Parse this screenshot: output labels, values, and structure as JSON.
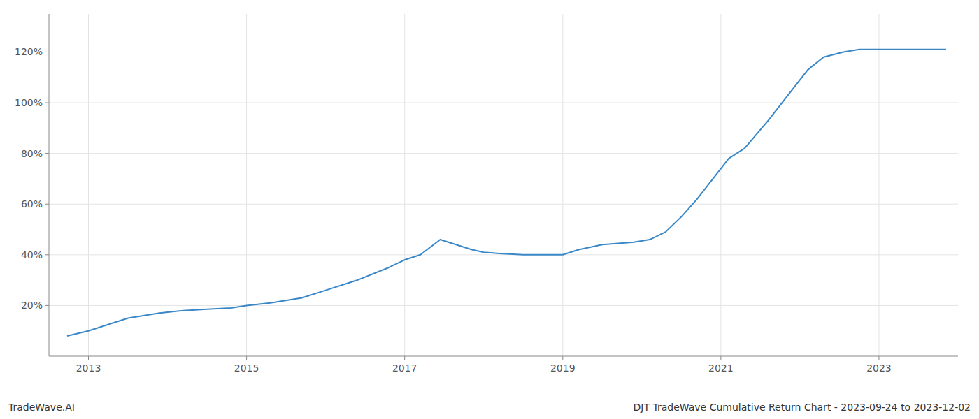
{
  "chart_data": {
    "type": "line",
    "title": "DJT TradeWave Cumulative Return Chart - 2023-09-24 to 2023-12-02",
    "annotations": [
      "TradeWave.AI"
    ],
    "x": [
      2012.73,
      2013.0,
      2013.5,
      2013.9,
      2014.2,
      2014.5,
      2014.8,
      2015.0,
      2015.3,
      2015.7,
      2016.0,
      2016.4,
      2016.8,
      2017.0,
      2017.2,
      2017.45,
      2017.65,
      2017.85,
      2018.0,
      2018.2,
      2018.5,
      2018.8,
      2019.0,
      2019.2,
      2019.5,
      2019.7,
      2019.9,
      2020.1,
      2020.3,
      2020.5,
      2020.7,
      2020.9,
      2021.1,
      2021.3,
      2021.6,
      2021.9,
      2022.1,
      2022.3,
      2022.55,
      2022.75,
      2023.0,
      2023.5,
      2023.85
    ],
    "values": [
      8,
      10,
      15,
      17,
      18,
      18.5,
      19,
      20,
      21,
      23,
      26,
      30,
      35,
      38,
      40,
      46,
      44,
      42,
      41,
      40.5,
      40,
      40,
      40,
      42,
      44,
      44.5,
      45,
      46,
      49,
      55,
      62,
      70,
      78,
      82,
      93,
      105,
      113,
      118,
      120,
      121,
      121,
      121,
      121
    ],
    "color": "#3a87c8",
    "xlim": [
      2012.5,
      2024.0
    ],
    "xticks": [
      2013,
      2015,
      2017,
      2019,
      2021,
      2023
    ],
    "ylim": [
      0,
      135
    ],
    "yticks": [
      {
        "value": 20,
        "label": "20%"
      },
      {
        "value": 40,
        "label": "40%"
      },
      {
        "value": 60,
        "label": "60%"
      },
      {
        "value": 80,
        "label": "80%"
      },
      {
        "value": 100,
        "label": "100%"
      },
      {
        "value": 120,
        "label": "120%"
      }
    ],
    "grid": true
  }
}
